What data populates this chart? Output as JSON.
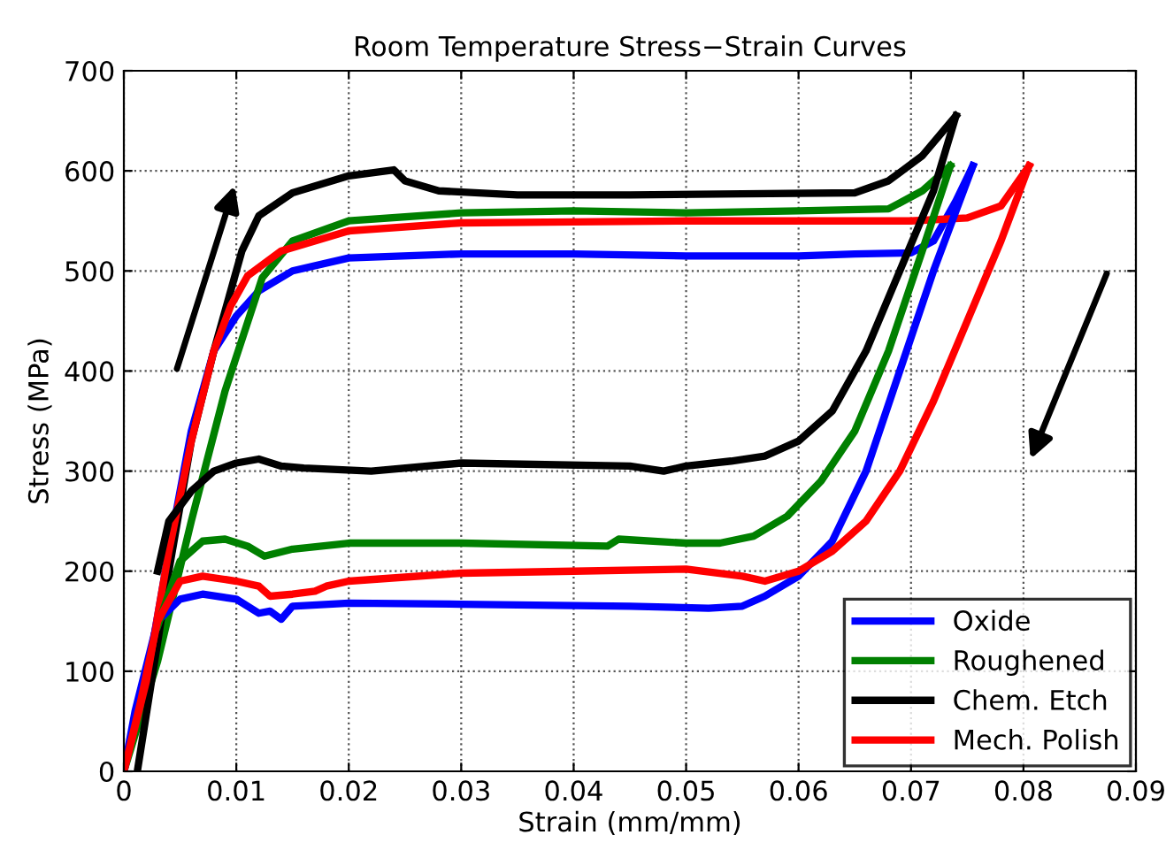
{
  "chart_data": {
    "type": "line",
    "title": "Room Temperature Stress−Strain Curves",
    "xlabel": "Strain (mm/mm)",
    "ylabel": "Stress (MPa)",
    "xlim": [
      0,
      0.09
    ],
    "xticks": [
      0,
      0.01,
      0.02,
      0.03,
      0.04,
      0.05,
      0.06,
      0.07,
      0.08,
      0.09
    ],
    "ylim": [
      0,
      700
    ],
    "yticks": [
      0,
      100,
      200,
      300,
      400,
      500,
      600,
      700
    ],
    "grid": true,
    "legend": "bottom right",
    "line_style": "solid",
    "marker": "none",
    "series": [
      {
        "name": "Oxide",
        "color": "#0000ff",
        "x": [
          0,
          0.002,
          0.004,
          0.006,
          0.008,
          0.01,
          0.012,
          0.015,
          0.02,
          0.03,
          0.04,
          0.05,
          0.06,
          0.065,
          0.07,
          0.072,
          0.074,
          0.0755
        ],
        "values": [
          0,
          90,
          220,
          340,
          420,
          455,
          480,
          500,
          513,
          517,
          517,
          515,
          515,
          517,
          518,
          530,
          570,
          605
        ]
      },
      {
        "name": "Roughened",
        "color": "#008000",
        "x": [
          0,
          0.003,
          0.006,
          0.009,
          0.0123,
          0.015,
          0.02,
          0.03,
          0.04,
          0.05,
          0.06,
          0.068,
          0.071,
          0.0735
        ],
        "values": [
          0,
          110,
          250,
          380,
          493,
          530,
          550,
          558,
          560,
          558,
          560,
          562,
          580,
          605
        ]
      },
      {
        "name": "Chem. Etch",
        "color": "#000000",
        "x": [
          0.0012,
          0.004,
          0.006,
          0.008,
          0.0105,
          0.012,
          0.015,
          0.02,
          0.024,
          0.025,
          0.028,
          0.035,
          0.045,
          0.055,
          0.065,
          0.068,
          0.071,
          0.074
        ],
        "values": [
          0,
          200,
          330,
          420,
          520,
          555,
          578,
          595,
          601,
          590,
          580,
          576,
          576,
          577,
          578,
          590,
          615,
          655
        ]
      },
      {
        "name": "Mech. Polish",
        "color": "#ff0000",
        "x": [
          0,
          0.002,
          0.004,
          0.006,
          0.008,
          0.0095,
          0.011,
          0.014,
          0.02,
          0.03,
          0.04,
          0.05,
          0.06,
          0.07,
          0.075,
          0.078,
          0.0805
        ],
        "values": [
          0,
          90,
          220,
          330,
          420,
          465,
          495,
          520,
          540,
          548,
          549,
          550,
          550,
          550,
          553,
          565,
          605
        ]
      },
      {
        "color": "#0000ff",
        "x": [
          0,
          0.001,
          0.003,
          0.005,
          0.007,
          0.01,
          0.012,
          0.013,
          0.014,
          0.015,
          0.02,
          0.03,
          0.045,
          0.052,
          0.055,
          0.057,
          0.06,
          0.063,
          0.066,
          0.069,
          0.072,
          0.0755
        ],
        "values": [
          0,
          60,
          150,
          172,
          177,
          172,
          158,
          160,
          152,
          165,
          168,
          167,
          165,
          163,
          165,
          175,
          195,
          230,
          300,
          400,
          500,
          605
        ]
      },
      {
        "color": "#008000",
        "x": [
          0.003,
          0.005,
          0.007,
          0.009,
          0.011,
          0.0125,
          0.015,
          0.02,
          0.03,
          0.043,
          0.044,
          0.05,
          0.053,
          0.056,
          0.059,
          0.062,
          0.065,
          0.068,
          0.071,
          0.0735
        ],
        "values": [
          145,
          210,
          230,
          232,
          225,
          215,
          222,
          228,
          228,
          225,
          232,
          228,
          228,
          235,
          255,
          290,
          340,
          420,
          520,
          605
        ]
      },
      {
        "color": "#000000",
        "x": [
          0.003,
          0.004,
          0.006,
          0.008,
          0.01,
          0.012,
          0.014,
          0.016,
          0.022,
          0.03,
          0.045,
          0.048,
          0.05,
          0.054,
          0.057,
          0.06,
          0.063,
          0.066,
          0.069,
          0.072,
          0.074
        ],
        "values": [
          200,
          250,
          280,
          300,
          308,
          312,
          305,
          303,
          300,
          308,
          305,
          300,
          305,
          310,
          315,
          330,
          360,
          420,
          500,
          580,
          655
        ]
      },
      {
        "color": "#ff0000",
        "x": [
          0,
          0.0015,
          0.003,
          0.005,
          0.007,
          0.01,
          0.012,
          0.013,
          0.015,
          0.017,
          0.018,
          0.02,
          0.03,
          0.04,
          0.05,
          0.055,
          0.057,
          0.06,
          0.063,
          0.066,
          0.069,
          0.072,
          0.075,
          0.078,
          0.0805
        ],
        "values": [
          0,
          70,
          150,
          190,
          195,
          190,
          185,
          175,
          177,
          180,
          185,
          190,
          198,
          200,
          202,
          195,
          190,
          200,
          220,
          250,
          300,
          370,
          450,
          530,
          605
        ]
      }
    ]
  }
}
